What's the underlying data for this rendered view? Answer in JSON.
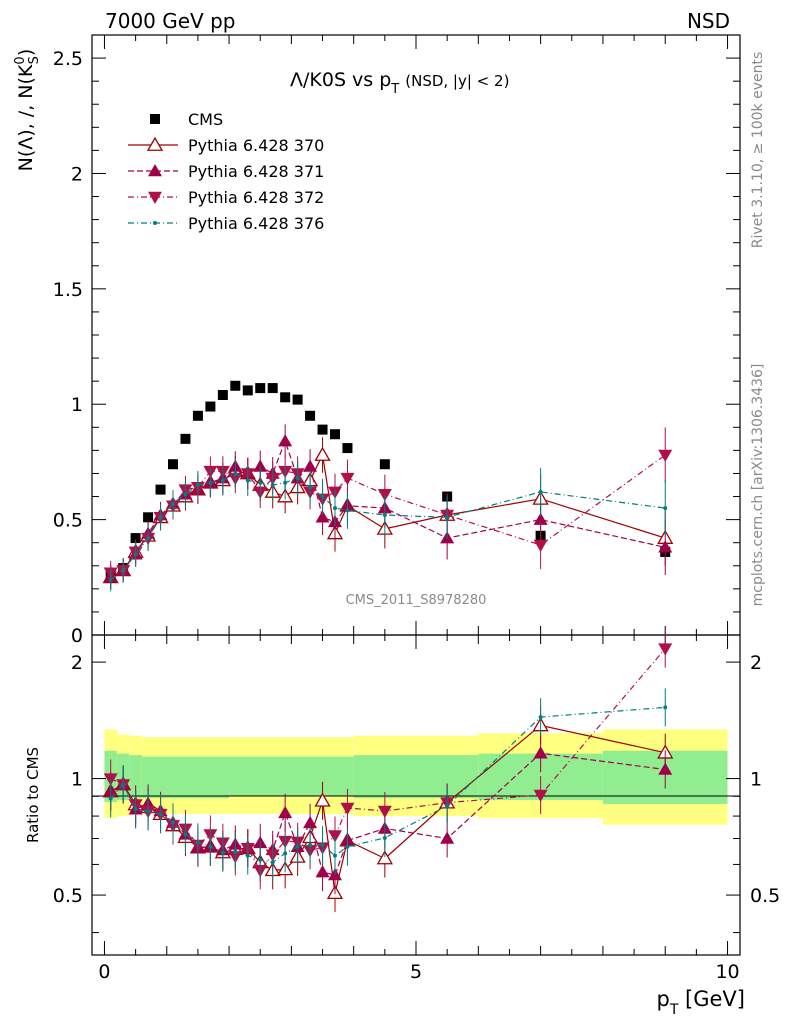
{
  "header": {
    "left": "7000 GeV pp",
    "right": "NSD"
  },
  "plot_title": {
    "main": "Λ/K0S vs p",
    "sub": "T",
    "tail": "(NSD, |y| < 2)"
  },
  "side_labels": {
    "rivet": "Rivet 3.1.10, ≥ 100k events",
    "mcplots": "mcplots.cern.ch [arXiv:1306.3436]"
  },
  "watermark": "CMS_2011_S8978280",
  "axes": {
    "top_ylabel": "N(Λ), /, N(K",
    "top_ylabel_sup": "0",
    "top_ylabel_sub": "S",
    "top_ylabel_tail": ")",
    "ratio_ylabel": "Ratio to CMS",
    "xlabel_main": "p",
    "xlabel_sub": "T",
    "xlabel_tail": " [GeV]"
  },
  "chart_data": {
    "type": "scatter",
    "xlim": [
      -0.2,
      10.2
    ],
    "top_ylim": [
      0,
      2.6
    ],
    "ratio_ylim": [
      0.35,
      2.35
    ],
    "ratio_log_scale": true,
    "x_ticks": [
      "0",
      "5",
      "10"
    ],
    "top_y_ticks": [
      "0",
      "0.5",
      "1",
      "1.5",
      "2",
      "2.5"
    ],
    "ratio_y_ticks": [
      "0.5",
      "1",
      "2"
    ],
    "legend_position": "top-left",
    "series": [
      {
        "name": "CMS",
        "color": "#000000",
        "marker": "square",
        "line": "none",
        "x": [
          0.1,
          0.3,
          0.5,
          0.7,
          0.9,
          1.1,
          1.3,
          1.5,
          1.7,
          1.9,
          2.1,
          2.3,
          2.5,
          2.7,
          2.9,
          3.1,
          3.3,
          3.5,
          3.7,
          3.9,
          4.5,
          5.5,
          7.0,
          9.0
        ],
        "y": [
          0.27,
          0.29,
          0.42,
          0.51,
          0.63,
          0.74,
          0.85,
          0.95,
          0.99,
          1.04,
          1.08,
          1.06,
          1.07,
          1.07,
          1.03,
          1.02,
          0.95,
          0.89,
          0.87,
          0.81,
          0.74,
          0.6,
          0.43,
          0.36
        ]
      },
      {
        "name": "Pythia 6.428 370",
        "color": "#a00000",
        "marker": "open-triangle-up",
        "line": "solid",
        "x": [
          0.1,
          0.3,
          0.5,
          0.7,
          0.9,
          1.1,
          1.3,
          1.5,
          1.7,
          1.9,
          2.1,
          2.3,
          2.5,
          2.7,
          2.9,
          3.1,
          3.3,
          3.5,
          3.7,
          3.9,
          4.5,
          5.5,
          7.0,
          9.0
        ],
        "y": [
          0.25,
          0.28,
          0.36,
          0.43,
          0.51,
          0.56,
          0.6,
          0.63,
          0.66,
          0.67,
          0.71,
          0.7,
          0.65,
          0.62,
          0.6,
          0.64,
          0.67,
          0.78,
          0.44,
          0.56,
          0.46,
          0.52,
          0.59,
          0.42
        ]
      },
      {
        "name": "Pythia 6.428 371",
        "color": "#a0004a",
        "marker": "filled-triangle-up",
        "line": "dashed",
        "x": [
          0.1,
          0.3,
          0.5,
          0.7,
          0.9,
          1.1,
          1.3,
          1.5,
          1.7,
          1.9,
          2.1,
          2.3,
          2.5,
          2.7,
          2.9,
          3.1,
          3.3,
          3.5,
          3.7,
          3.9,
          4.5,
          5.5,
          7.0,
          9.0
        ],
        "y": [
          0.25,
          0.28,
          0.35,
          0.44,
          0.52,
          0.57,
          0.61,
          0.63,
          0.66,
          0.68,
          0.73,
          0.7,
          0.73,
          0.7,
          0.84,
          0.68,
          0.73,
          0.51,
          0.49,
          0.56,
          0.55,
          0.42,
          0.5,
          0.38
        ]
      },
      {
        "name": "Pythia 6.428 372",
        "color": "#b0104a",
        "marker": "filled-triangle-down",
        "line": "dashdot",
        "x": [
          0.1,
          0.3,
          0.5,
          0.7,
          0.9,
          1.1,
          1.3,
          1.5,
          1.7,
          1.9,
          2.1,
          2.3,
          2.5,
          2.7,
          2.9,
          3.1,
          3.3,
          3.5,
          3.7,
          3.9,
          4.5,
          5.5,
          7.0,
          9.0
        ],
        "y": [
          0.27,
          0.28,
          0.36,
          0.42,
          0.51,
          0.56,
          0.63,
          0.64,
          0.71,
          0.71,
          0.68,
          0.7,
          0.62,
          0.68,
          0.71,
          0.7,
          0.62,
          0.59,
          0.62,
          0.68,
          0.61,
          0.52,
          0.39,
          0.78
        ]
      },
      {
        "name": "Pythia 6.428 376",
        "color": "#008080",
        "marker": "dot",
        "line": "dashdot",
        "x": [
          0.1,
          0.3,
          0.5,
          0.7,
          0.9,
          1.1,
          1.3,
          1.5,
          1.7,
          1.9,
          2.1,
          2.3,
          2.5,
          2.7,
          2.9,
          3.1,
          3.3,
          3.5,
          3.7,
          3.9,
          4.5,
          5.5,
          7.0,
          9.0
        ],
        "y": [
          0.24,
          0.28,
          0.35,
          0.42,
          0.51,
          0.57,
          0.61,
          0.65,
          0.66,
          0.67,
          0.7,
          0.67,
          0.66,
          0.65,
          0.66,
          0.68,
          0.64,
          0.6,
          0.55,
          0.54,
          0.52,
          0.51,
          0.62,
          0.55
        ]
      }
    ],
    "ratio_bands": {
      "yellow_color": "#ffff80",
      "green_color": "#90ee90",
      "edges": [
        0.0,
        0.2,
        0.4,
        0.6,
        2.0,
        4.0,
        6.0,
        8.0,
        10.0
      ],
      "yellow_low": [
        0.79,
        0.8,
        0.81,
        0.81,
        0.81,
        0.8,
        0.79,
        0.76
      ],
      "yellow_high": [
        1.34,
        1.3,
        1.29,
        1.28,
        1.28,
        1.29,
        1.31,
        1.34
      ],
      "green_low": [
        0.87,
        0.88,
        0.89,
        0.89,
        0.9,
        0.89,
        0.88,
        0.86
      ],
      "green_high": [
        1.18,
        1.16,
        1.15,
        1.14,
        1.14,
        1.15,
        1.16,
        1.18
      ]
    }
  }
}
